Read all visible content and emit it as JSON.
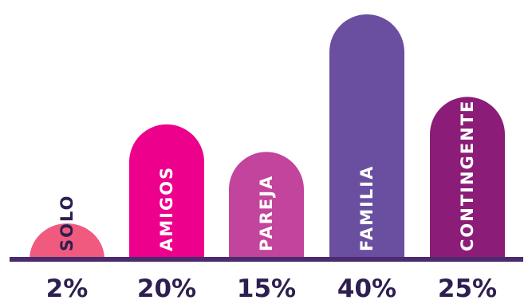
{
  "chart_data": {
    "type": "bar",
    "categories": [
      "SOLO",
      "AMIGOS",
      "PAREJA",
      "FAMILIA",
      "CONTINGENTE"
    ],
    "values": [
      2,
      20,
      15,
      40,
      25
    ],
    "value_labels": [
      "2%",
      "20%",
      "15%",
      "40%",
      "25%"
    ],
    "colors": [
      "#f05a7e",
      "#ec008c",
      "#c2449c",
      "#6a4fa0",
      "#8b1d78"
    ],
    "label_colors": [
      "#2d1f4f",
      "#ffffff",
      "#ffffff",
      "#ffffff",
      "#ffffff"
    ],
    "baseline_color": "#4b2a6e",
    "value_label_color": "#2d1f4f",
    "ylim": [
      0,
      40
    ],
    "grid": false,
    "legend": "none",
    "title": "",
    "xlabel": "",
    "ylabel": ""
  }
}
